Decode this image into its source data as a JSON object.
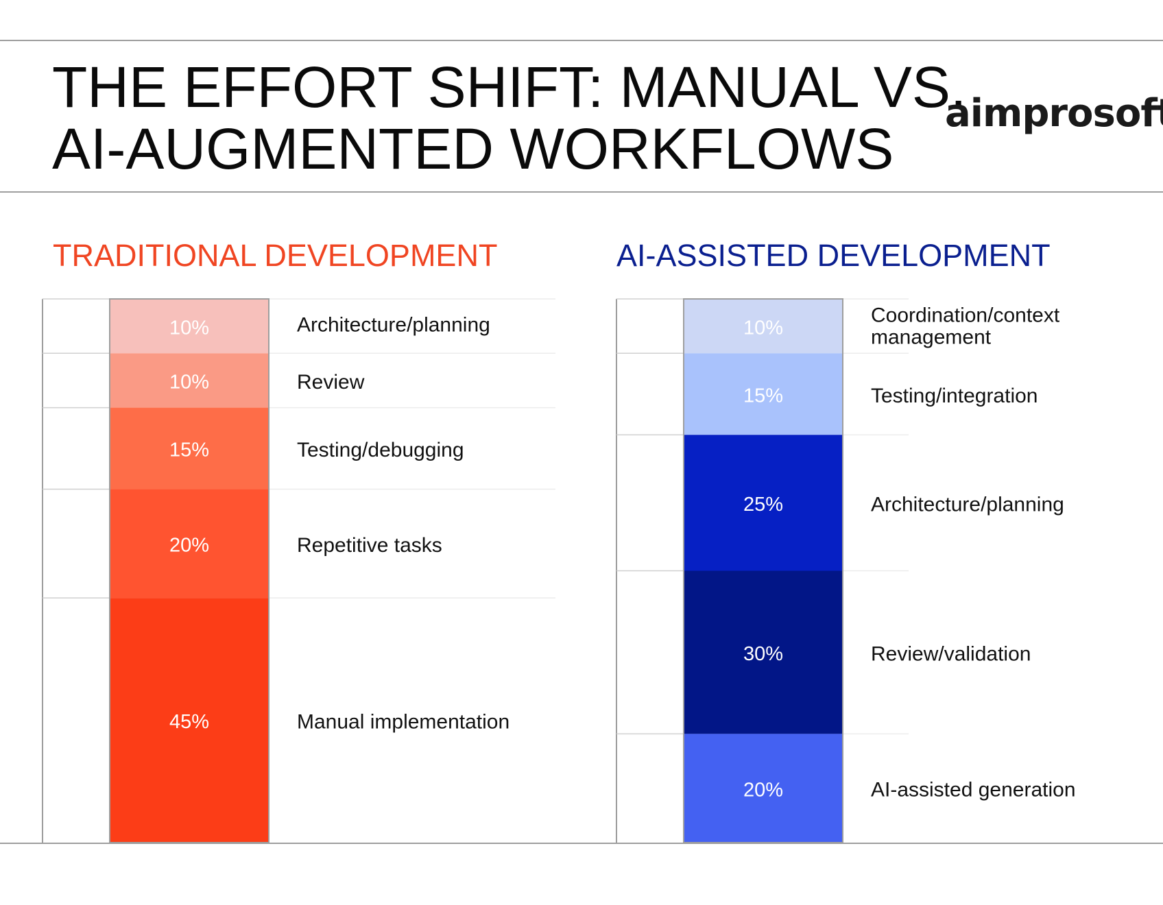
{
  "header": {
    "title_line1": "THE EFFORT SHIFT: MANUAL VS.",
    "title_line2": "AI-AUGMENTED WORKFLOWS",
    "brand": "aimprosoft"
  },
  "colors": {
    "traditional_heading": "#f04522",
    "ai_heading": "#0a1f8f"
  },
  "chart_data": [
    {
      "type": "bar",
      "stacked": true,
      "title": "TRADITIONAL DEVELOPMENT",
      "unit": "%",
      "ylim": [
        0,
        100
      ],
      "segments": [
        {
          "label": "Architecture/planning",
          "value": 10,
          "color": "#f7c0bb",
          "text_color": "#ffffff"
        },
        {
          "label": "Review",
          "value": 10,
          "color": "#fa9a85",
          "text_color": "#ffffff"
        },
        {
          "label": "Testing/debugging",
          "value": 15,
          "color": "#fe6d48",
          "text_color": "#ffffff"
        },
        {
          "label": "Repetitive tasks",
          "value": 20,
          "color": "#ff5430",
          "text_color": "#ffffff"
        },
        {
          "label": "Manual implementation",
          "value": 45,
          "color": "#fc3d17",
          "text_color": "#ffffff"
        }
      ]
    },
    {
      "type": "bar",
      "stacked": true,
      "title": "AI-ASSISTED DEVELOPMENT",
      "unit": "%",
      "ylim": [
        0,
        100
      ],
      "segments": [
        {
          "label": "Coordination/context management",
          "label_lines": [
            "Coordination/context",
            "management"
          ],
          "value": 10,
          "color": "#ccd7f5",
          "text_color": "#ffffff"
        },
        {
          "label": "Testing/integration",
          "value": 15,
          "color": "#a9c2fc",
          "text_color": "#ffffff"
        },
        {
          "label": "Architecture/planning",
          "value": 25,
          "color": "#0620c4",
          "text_color": "#ffffff"
        },
        {
          "label": "Review/validation",
          "value": 30,
          "color": "#021687",
          "text_color": "#ffffff"
        },
        {
          "label": "AI-assisted generation",
          "value": 20,
          "color": "#4461f2",
          "text_color": "#ffffff"
        }
      ]
    }
  ]
}
